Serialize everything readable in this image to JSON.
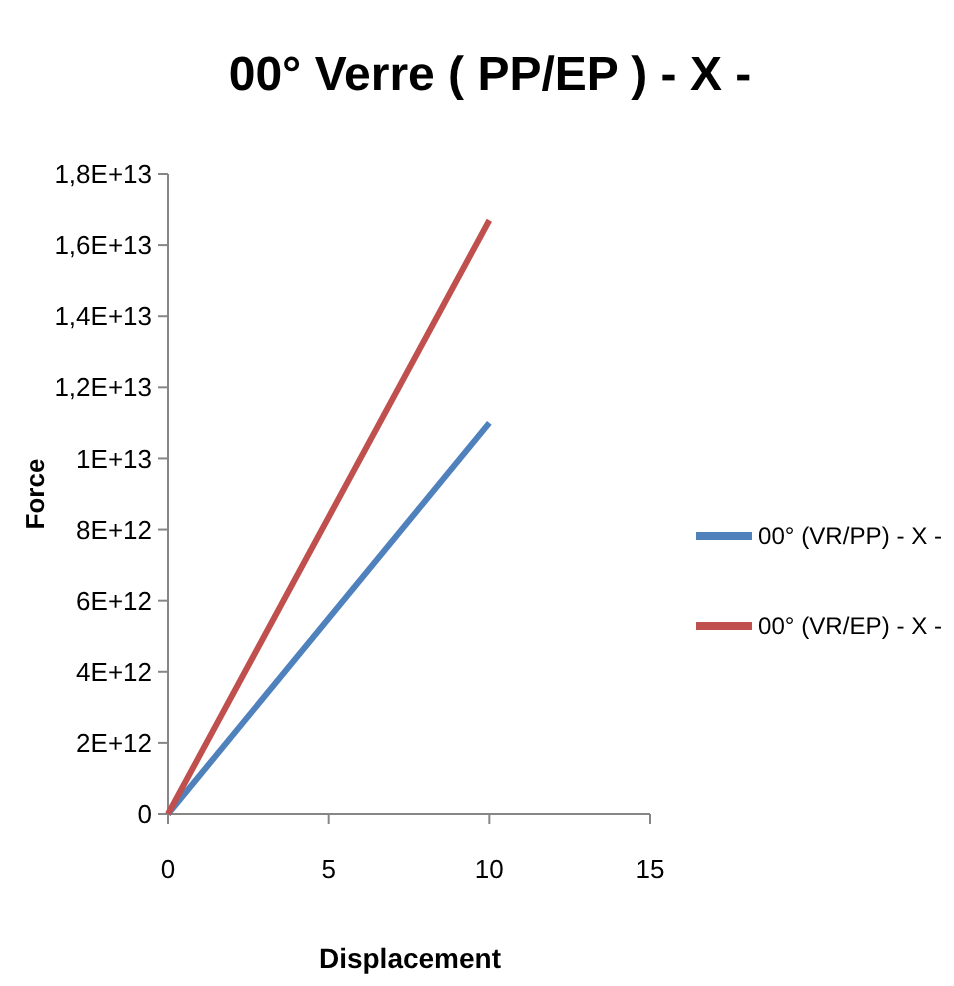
{
  "chart_data": {
    "type": "line",
    "title": "00° Verre ( PP/EP ) - X -",
    "xlabel": "Displacement",
    "ylabel": "Force",
    "x": [
      0,
      10
    ],
    "series": [
      {
        "name": "00° (VR/PP) - X -",
        "color": "#4f81bd",
        "values": [
          0,
          11000000000000.0
        ]
      },
      {
        "name": "00° (VR/EP) - X -",
        "color": "#c0504d",
        "values": [
          0,
          16700000000000.0
        ]
      }
    ],
    "xlim": [
      0,
      15
    ],
    "xticks": [
      0,
      5,
      10,
      15
    ],
    "ylim": [
      0,
      18000000000000.0
    ],
    "yticks": [
      0,
      {
        "value": 2000000000000.0,
        "label": "2E+12"
      },
      {
        "value": 4000000000000.0,
        "label": "4E+12"
      },
      {
        "value": 6000000000000.0,
        "label": "6E+12"
      },
      {
        "value": 8000000000000.0,
        "label": "8E+12"
      },
      {
        "value": 10000000000000.0,
        "label": "1E+13"
      },
      {
        "value": 12000000000000.0,
        "label": "1,2E+13"
      },
      {
        "value": 14000000000000.0,
        "label": "1,4E+13"
      },
      {
        "value": 16000000000000.0,
        "label": "1,6E+13"
      },
      {
        "value": 18000000000000.0,
        "label": "1,8E+13"
      }
    ],
    "grid": false,
    "legend": "right",
    "marker": "none",
    "line_style": "solid"
  }
}
